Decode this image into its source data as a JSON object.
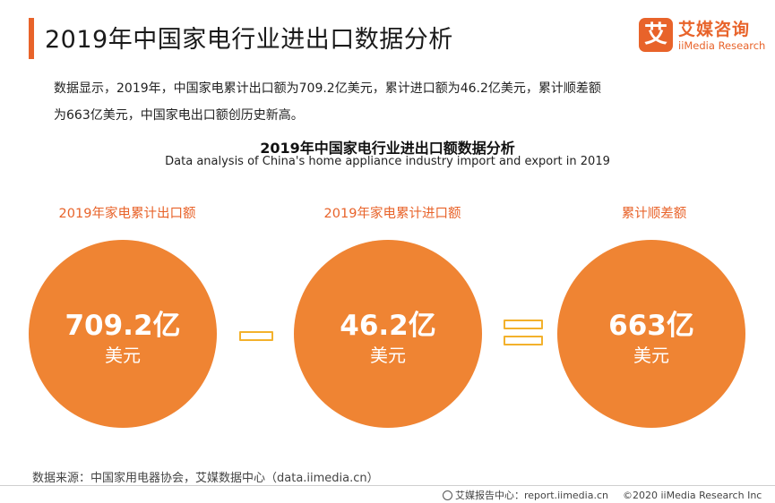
{
  "header": {
    "title": "2019年中国家电行业进出口数据分析"
  },
  "logo": {
    "mark": "艾",
    "name_cn": "艾媒咨询",
    "name_en": "iiMedia Research"
  },
  "summary": {
    "line1": "数据显示，2019年，中国家电累计出口额为709.2亿美元，累计进口额为46.2亿美元，累计顺差额",
    "line2": "为663亿美元，中国家电出口额创历史新高。"
  },
  "chart": {
    "title": "2019年中国家电行业进出口额数据分析",
    "subtitle": "Data analysis of China's home appliance industry import and export in 2019",
    "items": [
      {
        "label": "2019年家电累计出口额",
        "value": "709.2亿",
        "unit": "美元"
      },
      {
        "label": "2019年家电累计进口额",
        "value": "46.2亿",
        "unit": "美元"
      },
      {
        "label": "累计顺差额",
        "value": "663亿",
        "unit": "美元"
      }
    ]
  },
  "colors": {
    "accent": "#e8632a",
    "circle": "#ef8433",
    "operator": "#f3b12c"
  },
  "footer": {
    "source": "数据来源：中国家用电器协会，艾媒数据中心（data.iimedia.cn）",
    "report_center": "艾媒报告中心：report.iimedia.cn",
    "copyright": "©2020  iiMedia Research  Inc"
  }
}
